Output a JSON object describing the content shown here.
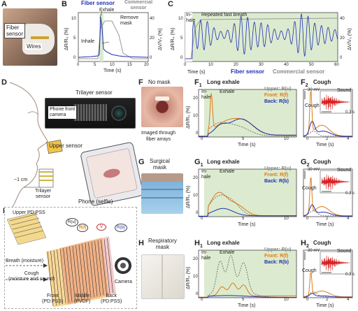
{
  "panels": {
    "A": {
      "letter": "A",
      "fiber_sensor": "Fiber\nsensor",
      "wires": "Wires"
    },
    "B": {
      "letter": "B",
      "legend_fiber": "Fiber sensor",
      "legend_commercial": "Commercial\nsensor",
      "exhale": "Exhale",
      "inhale": "Inhale",
      "remove_mask": "Remove\nmask",
      "xlabel": "Time (s)",
      "ylabel_left": "ΔR/R₀ (%)",
      "ylabel_right": "ΔV/V₀ (%)",
      "xticks": [
        "0",
        "5",
        "10",
        "15",
        "20"
      ],
      "yticks_left": [
        "0",
        "5",
        "10"
      ],
      "yticks_right": [
        "0",
        "20",
        "40"
      ]
    },
    "C": {
      "letter": "C",
      "in_hale": "In-\nhale",
      "repeated": "Repeated fast breath",
      "legend_fiber": "Fiber sensor",
      "legend_commercial": "Commercial sensor",
      "xlabel": "Time (s)",
      "ylabel_left": "ΔR/R₀ (%)",
      "ylabel_right": "ΔV/V₀ (%)",
      "xticks": [
        "0",
        "10",
        "20",
        "30",
        "40",
        "50",
        "60"
      ],
      "yticks_left": [
        "0",
        "5",
        "10"
      ],
      "yticks_right": [
        "0",
        "20",
        "40"
      ]
    },
    "D": {
      "letter": "D",
      "trilayer_sensor": "Trilayer sensor",
      "phone_front_camera": "Phone front\ncamera",
      "upper_sensor": "Upper sensor",
      "distance": "~1 cm",
      "trilayer_sensor2": "Trilayer\nsensor",
      "phone_selfie": "Phone (selfie)"
    },
    "E": {
      "letter": "E",
      "upper": "Upper PD:PSS",
      "breath": "Breath (moisture)",
      "cough": "Cough\n(moisture and sound)",
      "front": "Front\n(PD:PSS)",
      "middle": "Middle\n(PVDF)",
      "back": "Back\n(PD:PSS)",
      "camera": "Camera",
      "r_u": "R(u)",
      "r_f": "R(f)",
      "v": "V",
      "r_b": "R(b)"
    },
    "F": {
      "letter": "F",
      "title": "No mask",
      "caption": "Imaged through\nfiber arrays"
    },
    "G": {
      "letter": "G",
      "title": "Surgical\nmask"
    },
    "H": {
      "letter": "H",
      "title": "Respiratory\nmask"
    },
    "F1": {
      "letter": "F",
      "sub": "1",
      "title": "Long exhale",
      "inhale": "In-\nhale",
      "exhale": "Exhale"
    },
    "G1": {
      "letter": "G",
      "sub": "1",
      "title": "Long exhale",
      "inhale": "In-\nhale",
      "exhale": "Exhale"
    },
    "H1": {
      "letter": "H",
      "sub": "1",
      "title": "Long exhale",
      "inhale": "In-\nhale",
      "exhale": "Exhale"
    },
    "F2": {
      "letter": "F",
      "sub": "2",
      "title": "Cough",
      "cough": "Cough",
      "mv": "30 mV",
      "sound": "Sound",
      "t": "0.3 s"
    },
    "G2": {
      "letter": "G",
      "sub": "2",
      "title": "Cough",
      "cough": "Cough",
      "mv": "30 mV",
      "sound": "Sound",
      "t": "0.3 s"
    },
    "H2": {
      "letter": "H",
      "sub": "2",
      "title": "Cough",
      "cough": "Cough",
      "mv": "30 mV",
      "sound": "Sound",
      "t": "0.3 s"
    }
  },
  "legend_rows": {
    "upper": "Upper: R(u)",
    "front": "Front: R(f)",
    "back": "Back: R(b)"
  },
  "long_axes": {
    "xlabel": "Time (s)",
    "ylabel": "ΔR/R₀ (%)",
    "xticks": [
      "0",
      "5",
      "10"
    ],
    "yticks": [
      "0",
      "10",
      "20"
    ]
  },
  "cough_axes": {
    "xlabel": "Time (s)",
    "xticks": [
      "0",
      "2",
      "4"
    ]
  },
  "colors": {
    "fiber": "#1f2fb3",
    "commercial": "#999999",
    "front": "#e07a10",
    "back": "#1f2fb3",
    "upper": "#777777",
    "sound": "#d62020",
    "green_bg": "#dcebcf"
  }
}
